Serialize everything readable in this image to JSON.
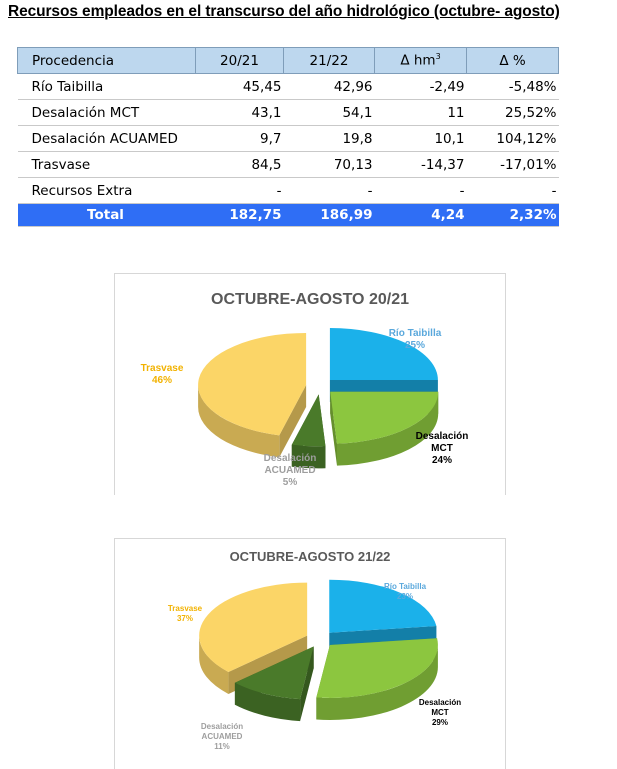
{
  "page_title": "Recursos empleados en el transcurso del año hidrológico (octubre- agosto)",
  "table": {
    "headers": [
      "Procedencia",
      "20/21",
      "21/22",
      "Δ hm",
      "Δ %"
    ],
    "header_sup": "3",
    "rows": [
      [
        "Río Taibilla",
        "45,45",
        "42,96",
        "-2,49",
        "-5,48%"
      ],
      [
        "Desalación MCT",
        "43,1",
        "54,1",
        "11",
        "25,52%"
      ],
      [
        "Desalación ACUAMED",
        "9,7",
        "19,8",
        "10,1",
        "104,12%"
      ],
      [
        "Trasvase",
        "84,5",
        "70,13",
        "-14,37",
        "-17,01%"
      ],
      [
        "Recursos Extra",
        "-",
        "-",
        "-",
        "-"
      ]
    ],
    "total": [
      "Total",
      "182,75",
      "186,99",
      "4,24",
      "2,32%"
    ]
  },
  "chart_data": [
    {
      "type": "pie",
      "title": "OCTUBRE-AGOSTO 20/21",
      "categories": [
        "Río Taibilla",
        "Desalación MCT",
        "Desalación ACUAMED",
        "Trasvase"
      ],
      "values": [
        25,
        24,
        5,
        46
      ],
      "percent_labels": [
        "25%",
        "24%",
        "5%",
        "46%"
      ],
      "colors": [
        "#1bb1ea",
        "#8cc63f",
        "#4a7a2a",
        "#fbd567"
      ],
      "label_colors": [
        "#5aa8dc",
        "#000000",
        "#9e9e9e",
        "#f2b200"
      ],
      "style": "3d exploded"
    },
    {
      "type": "pie",
      "title": "OCTUBRE-AGOSTO 21/22",
      "categories": [
        "Río Taibilla",
        "Desalación MCT",
        "Desalación ACUAMED",
        "Trasvase"
      ],
      "values": [
        23,
        29,
        11,
        37
      ],
      "percent_labels": [
        "23%",
        "29%",
        "11%",
        "37%"
      ],
      "colors": [
        "#1bb1ea",
        "#8cc63f",
        "#4a7a2a",
        "#fbd567"
      ],
      "label_colors": [
        "#5aa8dc",
        "#000000",
        "#9e9e9e",
        "#f2b200"
      ],
      "style": "3d exploded"
    }
  ]
}
